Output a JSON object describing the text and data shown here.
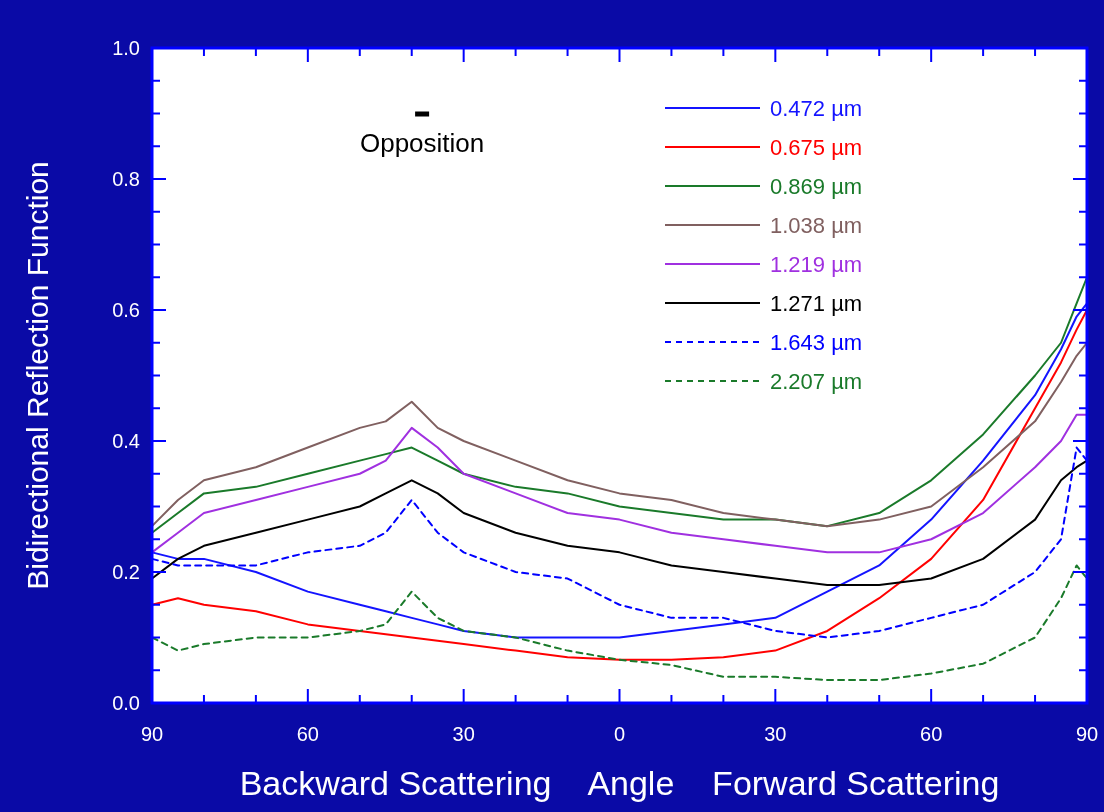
{
  "chart_data": {
    "type": "line",
    "xlabel": "Backward Scattering    Angle    Forward Scattering",
    "ylabel": "Bidirectional Reflection Function",
    "x": [
      -90,
      -85,
      -80,
      -70,
      -60,
      -50,
      -45,
      -40,
      -35,
      -30,
      -20,
      -10,
      0,
      10,
      20,
      30,
      40,
      50,
      60,
      70,
      80,
      85,
      88,
      90
    ],
    "xlim": [
      -90,
      90
    ],
    "xticks": [
      {
        "value": -90,
        "label": "90"
      },
      {
        "value": -80,
        "label": null
      },
      {
        "value": -70,
        "label": null
      },
      {
        "value": -60,
        "label": "60"
      },
      {
        "value": -50,
        "label": null
      },
      {
        "value": -40,
        "label": null
      },
      {
        "value": -30,
        "label": "30"
      },
      {
        "value": -20,
        "label": null
      },
      {
        "value": -10,
        "label": null
      },
      {
        "value": 0,
        "label": "0"
      },
      {
        "value": 10,
        "label": null
      },
      {
        "value": 20,
        "label": null
      },
      {
        "value": 30,
        "label": "30"
      },
      {
        "value": 40,
        "label": null
      },
      {
        "value": 50,
        "label": null
      },
      {
        "value": 60,
        "label": "60"
      },
      {
        "value": 70,
        "label": null
      },
      {
        "value": 80,
        "label": null
      },
      {
        "value": 90,
        "label": "90"
      }
    ],
    "ylim": [
      0,
      1
    ],
    "yticks": [
      {
        "value": 0,
        "label": "0.0"
      },
      {
        "value": 0.05,
        "label": null
      },
      {
        "value": 0.1,
        "label": null
      },
      {
        "value": 0.15,
        "label": null
      },
      {
        "value": 0.2,
        "label": "0.2"
      },
      {
        "value": 0.25,
        "label": null
      },
      {
        "value": 0.3,
        "label": null
      },
      {
        "value": 0.35,
        "label": null
      },
      {
        "value": 0.4,
        "label": "0.4"
      },
      {
        "value": 0.45,
        "label": null
      },
      {
        "value": 0.5,
        "label": null
      },
      {
        "value": 0.55,
        "label": null
      },
      {
        "value": 0.6,
        "label": "0.6"
      },
      {
        "value": 0.65,
        "label": null
      },
      {
        "value": 0.7,
        "label": null
      },
      {
        "value": 0.75,
        "label": null
      },
      {
        "value": 0.8,
        "label": "0.8"
      },
      {
        "value": 0.85,
        "label": null
      },
      {
        "value": 0.9,
        "label": null
      },
      {
        "value": 0.95,
        "label": null
      },
      {
        "value": 1,
        "label": "1.0"
      }
    ],
    "legend": "top right",
    "grid": false,
    "marker": "none",
    "annotations": [
      {
        "text": "Opposition",
        "x": -38,
        "y": 0.9
      }
    ],
    "series": [
      {
        "name": "0.472 µm",
        "color": "#1414ff",
        "line_style": "solid",
        "values": [
          0.23,
          0.22,
          0.22,
          0.2,
          0.17,
          0.15,
          0.14,
          0.13,
          0.12,
          0.11,
          0.1,
          0.1,
          0.1,
          0.11,
          0.12,
          0.13,
          0.17,
          0.21,
          0.28,
          0.37,
          0.47,
          0.54,
          0.59,
          0.61
        ]
      },
      {
        "name": "0.675 µm",
        "color": "#ff0000",
        "line_style": "solid",
        "values": [
          0.15,
          0.16,
          0.15,
          0.14,
          0.12,
          0.11,
          0.105,
          0.1,
          0.095,
          0.09,
          0.08,
          0.07,
          0.066,
          0.066,
          0.07,
          0.08,
          0.11,
          0.16,
          0.22,
          0.31,
          0.45,
          0.52,
          0.57,
          0.6
        ]
      },
      {
        "name": "0.869 µm",
        "color": "#1a7a2a",
        "line_style": "solid",
        "values": [
          0.26,
          0.29,
          0.32,
          0.33,
          0.35,
          0.37,
          0.38,
          0.39,
          0.37,
          0.35,
          0.33,
          0.32,
          0.3,
          0.29,
          0.28,
          0.28,
          0.27,
          0.29,
          0.34,
          0.41,
          0.5,
          0.55,
          0.61,
          0.65
        ]
      },
      {
        "name": "1.038 µm",
        "color": "#806060",
        "line_style": "solid",
        "values": [
          0.27,
          0.31,
          0.34,
          0.36,
          0.39,
          0.42,
          0.43,
          0.46,
          0.42,
          0.4,
          0.37,
          0.34,
          0.32,
          0.31,
          0.29,
          0.28,
          0.27,
          0.28,
          0.3,
          0.36,
          0.43,
          0.49,
          0.53,
          0.55
        ]
      },
      {
        "name": "1.219 µm",
        "color": "#a030e0",
        "line_style": "solid",
        "values": [
          0.23,
          0.26,
          0.29,
          0.31,
          0.33,
          0.35,
          0.37,
          0.42,
          0.39,
          0.35,
          0.32,
          0.29,
          0.28,
          0.26,
          0.25,
          0.24,
          0.23,
          0.23,
          0.25,
          0.29,
          0.36,
          0.4,
          0.44,
          0.44
        ]
      },
      {
        "name": "1.271 µm",
        "color": "#000000",
        "line_style": "solid",
        "values": [
          0.19,
          0.22,
          0.24,
          0.26,
          0.28,
          0.3,
          0.32,
          0.34,
          0.32,
          0.29,
          0.26,
          0.24,
          0.23,
          0.21,
          0.2,
          0.19,
          0.18,
          0.18,
          0.19,
          0.22,
          0.28,
          0.34,
          0.36,
          0.37
        ]
      },
      {
        "name": "1.643 µm",
        "color": "#0000ff",
        "line_style": "dashed",
        "values": [
          0.22,
          0.21,
          0.21,
          0.21,
          0.23,
          0.24,
          0.26,
          0.31,
          0.26,
          0.23,
          0.2,
          0.19,
          0.15,
          0.13,
          0.13,
          0.11,
          0.1,
          0.11,
          0.13,
          0.15,
          0.2,
          0.25,
          0.39,
          0.37
        ]
      },
      {
        "name": "2.207 µm",
        "color": "#1a7a2a",
        "line_style": "dashed",
        "values": [
          0.1,
          0.08,
          0.09,
          0.1,
          0.1,
          0.11,
          0.12,
          0.17,
          0.13,
          0.11,
          0.1,
          0.08,
          0.066,
          0.058,
          0.04,
          0.04,
          0.035,
          0.035,
          0.045,
          0.06,
          0.1,
          0.16,
          0.21,
          0.19
        ]
      }
    ]
  }
}
